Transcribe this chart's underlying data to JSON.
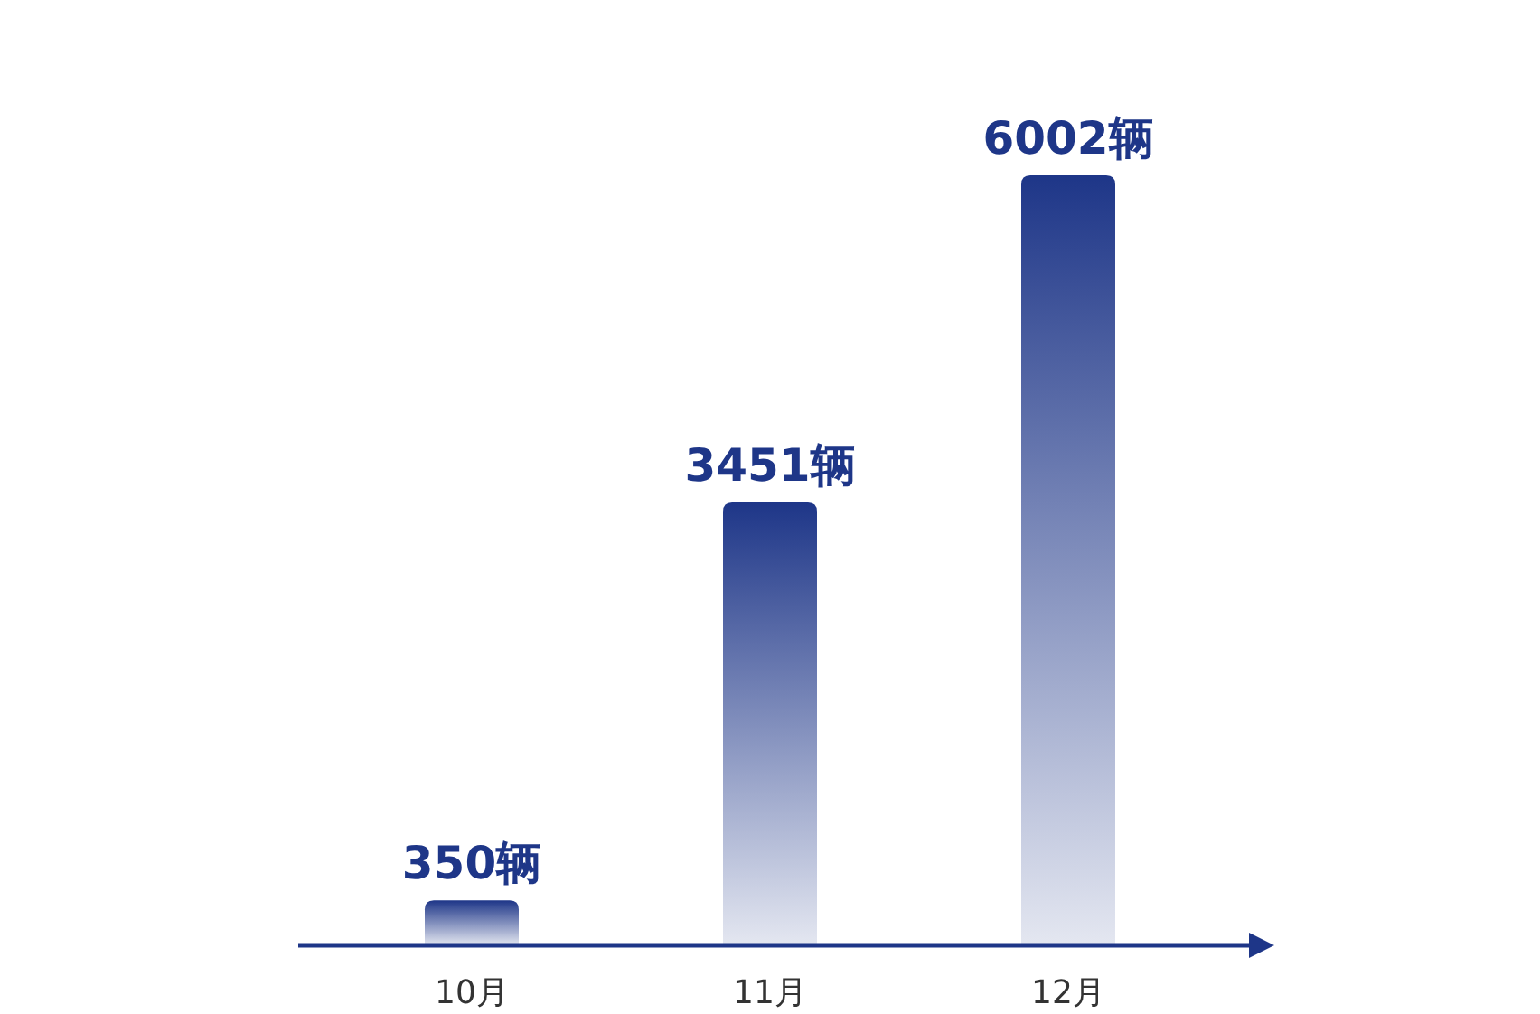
{
  "chart_data": {
    "type": "bar",
    "categories": [
      "10月",
      "11月",
      "12月"
    ],
    "values": [
      350,
      3451,
      6002
    ],
    "value_labels": [
      "350辆",
      "3451辆",
      "6002辆"
    ],
    "color": "#1e3688"
  }
}
